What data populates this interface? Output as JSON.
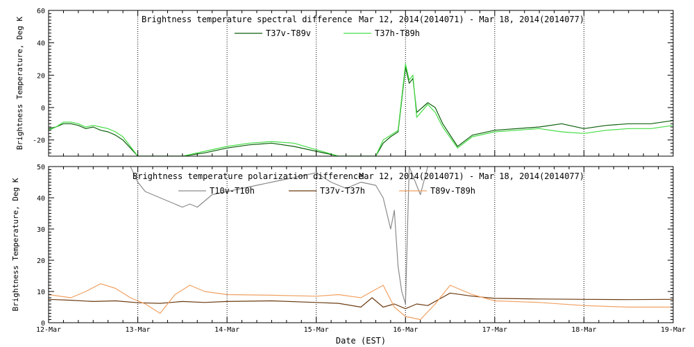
{
  "chart_data": [
    {
      "type": "line",
      "title": "Brightness temperature spectral difference",
      "subtitle": "Mar 12, 2014(2014071) - Mar 18, 2014(2014077)",
      "ylabel": "Brightness Temperature, Deg K",
      "xlabel": "",
      "x_ticks": [
        "12-Mar",
        "13-Mar",
        "14-Mar",
        "15-Mar",
        "16-Mar",
        "17-Mar",
        "18-Mar",
        "19-Mar"
      ],
      "y_ticks": [
        "-20",
        "0",
        "20",
        "40",
        "60"
      ],
      "xlim": [
        "2014-03-12",
        "2014-03-19"
      ],
      "ylim": [
        -30,
        60
      ],
      "grid": true,
      "legend_position": "top-center",
      "series": [
        {
          "name": "T37v-T89v",
          "color": "#0b5e0b",
          "points": [
            [
              "2014-03-12 00:00",
              -13
            ],
            [
              "2014-03-12 02:00",
              -12
            ],
            [
              "2014-03-12 04:00",
              -10
            ],
            [
              "2014-03-12 06:00",
              -10
            ],
            [
              "2014-03-12 08:00",
              -11
            ],
            [
              "2014-03-12 10:00",
              -13
            ],
            [
              "2014-03-12 12:00",
              -12
            ],
            [
              "2014-03-12 14:00",
              -14
            ],
            [
              "2014-03-12 16:00",
              -15
            ],
            [
              "2014-03-12 18:00",
              -17
            ],
            [
              "2014-03-12 20:00",
              -20
            ],
            [
              "2014-03-12 22:00",
              -25
            ],
            [
              "2014-03-13 00:00",
              -30
            ],
            [
              "2014-03-13 12:00",
              -30
            ],
            [
              "2014-03-13 18:00",
              -28
            ],
            [
              "2014-03-14 00:00",
              -25
            ],
            [
              "2014-03-14 06:00",
              -23
            ],
            [
              "2014-03-14 12:00",
              -22
            ],
            [
              "2014-03-14 18:00",
              -24
            ],
            [
              "2014-03-15 00:00",
              -27
            ],
            [
              "2014-03-15 06:00",
              -30
            ],
            [
              "2014-03-15 16:00",
              -30
            ],
            [
              "2014-03-15 18:00",
              -22
            ],
            [
              "2014-03-15 20:00",
              -18
            ],
            [
              "2014-03-15 22:00",
              -15
            ],
            [
              "2014-03-16 00:00",
              25
            ],
            [
              "2014-03-16 01:00",
              15
            ],
            [
              "2014-03-16 02:00",
              18
            ],
            [
              "2014-03-16 03:00",
              -3
            ],
            [
              "2014-03-16 06:00",
              3
            ],
            [
              "2014-03-16 08:00",
              0
            ],
            [
              "2014-03-16 10:00",
              -10
            ],
            [
              "2014-03-16 14:00",
              -24
            ],
            [
              "2014-03-16 18:00",
              -17
            ],
            [
              "2014-03-17 00:00",
              -14
            ],
            [
              "2014-03-17 12:00",
              -12
            ],
            [
              "2014-03-17 18:00",
              -10
            ],
            [
              "2014-03-18 00:00",
              -13
            ],
            [
              "2014-03-18 06:00",
              -11
            ],
            [
              "2014-03-18 12:00",
              -10
            ],
            [
              "2014-03-18 18:00",
              -10
            ],
            [
              "2014-03-19 00:00",
              -8
            ]
          ]
        },
        {
          "name": "T37h-T89h",
          "color": "#44dd44",
          "points": [
            [
              "2014-03-12 00:00",
              -14
            ],
            [
              "2014-03-12 02:00",
              -12
            ],
            [
              "2014-03-12 04:00",
              -9
            ],
            [
              "2014-03-12 06:00",
              -9
            ],
            [
              "2014-03-12 08:00",
              -10
            ],
            [
              "2014-03-12 10:00",
              -12
            ],
            [
              "2014-03-12 12:00",
              -11
            ],
            [
              "2014-03-12 14:00",
              -12
            ],
            [
              "2014-03-12 16:00",
              -13
            ],
            [
              "2014-03-12 18:00",
              -15
            ],
            [
              "2014-03-12 20:00",
              -18
            ],
            [
              "2014-03-12 22:00",
              -24
            ],
            [
              "2014-03-13 00:00",
              -30
            ],
            [
              "2014-03-13 12:00",
              -30
            ],
            [
              "2014-03-13 18:00",
              -27
            ],
            [
              "2014-03-14 00:00",
              -24
            ],
            [
              "2014-03-14 06:00",
              -22
            ],
            [
              "2014-03-14 12:00",
              -21
            ],
            [
              "2014-03-14 18:00",
              -22
            ],
            [
              "2014-03-15 00:00",
              -26
            ],
            [
              "2014-03-15 06:00",
              -30
            ],
            [
              "2014-03-15 16:00",
              -30
            ],
            [
              "2014-03-15 18:00",
              -20
            ],
            [
              "2014-03-15 20:00",
              -17
            ],
            [
              "2014-03-15 22:00",
              -14
            ],
            [
              "2014-03-16 00:00",
              27
            ],
            [
              "2014-03-16 01:00",
              17
            ],
            [
              "2014-03-16 02:00",
              20
            ],
            [
              "2014-03-16 03:00",
              -6
            ],
            [
              "2014-03-16 06:00",
              2
            ],
            [
              "2014-03-16 08:00",
              -3
            ],
            [
              "2014-03-16 10:00",
              -12
            ],
            [
              "2014-03-16 14:00",
              -25
            ],
            [
              "2014-03-16 18:00",
              -18
            ],
            [
              "2014-03-17 00:00",
              -15
            ],
            [
              "2014-03-17 12:00",
              -13
            ],
            [
              "2014-03-17 18:00",
              -15
            ],
            [
              "2014-03-18 00:00",
              -16
            ],
            [
              "2014-03-18 06:00",
              -14
            ],
            [
              "2014-03-18 12:00",
              -13
            ],
            [
              "2014-03-18 18:00",
              -13
            ],
            [
              "2014-03-19 00:00",
              -11
            ]
          ]
        }
      ]
    },
    {
      "type": "line",
      "title": "Brightness temperature polarization difference",
      "subtitle": "Mar 12, 2014(2014071) - Mar 18, 2014(2014077)",
      "ylabel": "Brightness Temperature, Deg K",
      "xlabel": "Date (EST)",
      "x_ticks": [
        "12-Mar",
        "13-Mar",
        "14-Mar",
        "15-Mar",
        "16-Mar",
        "17-Mar",
        "18-Mar",
        "19-Mar"
      ],
      "y_ticks": [
        "0",
        "10",
        "20",
        "30",
        "40",
        "50"
      ],
      "xlim": [
        "2014-03-12",
        "2014-03-19"
      ],
      "ylim": [
        0,
        50
      ],
      "grid": true,
      "legend_position": "top-center",
      "series": [
        {
          "name": "T10v-T10h",
          "color": "#8a8a8a",
          "points": [
            [
              "2014-03-12 22:00",
              50
            ],
            [
              "2014-03-13 00:00",
              45
            ],
            [
              "2014-03-13 02:00",
              42
            ],
            [
              "2014-03-13 04:00",
              41
            ],
            [
              "2014-03-13 06:00",
              40
            ],
            [
              "2014-03-13 08:00",
              39
            ],
            [
              "2014-03-13 10:00",
              38
            ],
            [
              "2014-03-13 12:00",
              37
            ],
            [
              "2014-03-13 14:00",
              38
            ],
            [
              "2014-03-13 16:00",
              37
            ],
            [
              "2014-03-13 18:00",
              39
            ],
            [
              "2014-03-13 20:00",
              41
            ],
            [
              "2014-03-14 00:00",
              42
            ],
            [
              "2014-03-14 04:00",
              43
            ],
            [
              "2014-03-14 08:00",
              44
            ],
            [
              "2014-03-14 12:00",
              45
            ],
            [
              "2014-03-14 16:00",
              46
            ],
            [
              "2014-03-14 20:00",
              47
            ],
            [
              "2014-03-15 00:00",
              48
            ],
            [
              "2014-03-15 04:00",
              45
            ],
            [
              "2014-03-15 08:00",
              43
            ],
            [
              "2014-03-15 12:00",
              45
            ],
            [
              "2014-03-15 16:00",
              44
            ],
            [
              "2014-03-15 18:00",
              40
            ],
            [
              "2014-03-15 20:00",
              30
            ],
            [
              "2014-03-15 21:00",
              36
            ],
            [
              "2014-03-15 22:00",
              18
            ],
            [
              "2014-03-15 23:00",
              10
            ],
            [
              "2014-03-16 00:00",
              6
            ],
            [
              "2014-03-16 01:00",
              50
            ],
            [
              "2014-03-16 04:00",
              41
            ],
            [
              "2014-03-16 06:00",
              50
            ]
          ]
        },
        {
          "name": "T37v-T37h",
          "color": "#6b3a10",
          "points": [
            [
              "2014-03-12 00:00",
              7.5
            ],
            [
              "2014-03-12 06:00",
              7.2
            ],
            [
              "2014-03-12 12:00",
              6.8
            ],
            [
              "2014-03-12 18:00",
              7.0
            ],
            [
              "2014-03-13 00:00",
              6.4
            ],
            [
              "2014-03-13 06:00",
              6.2
            ],
            [
              "2014-03-13 12:00",
              6.8
            ],
            [
              "2014-03-13 18:00",
              6.5
            ],
            [
              "2014-03-14 00:00",
              6.8
            ],
            [
              "2014-03-14 12:00",
              7.0
            ],
            [
              "2014-03-15 00:00",
              6.5
            ],
            [
              "2014-03-15 06:00",
              6.2
            ],
            [
              "2014-03-15 12:00",
              5.0
            ],
            [
              "2014-03-15 15:00",
              8.0
            ],
            [
              "2014-03-15 18:00",
              5.0
            ],
            [
              "2014-03-15 21:00",
              6.0
            ],
            [
              "2014-03-16 00:00",
              4.5
            ],
            [
              "2014-03-16 03:00",
              6.0
            ],
            [
              "2014-03-16 06:00",
              5.5
            ],
            [
              "2014-03-16 12:00",
              9.5
            ],
            [
              "2014-03-16 18:00",
              8.5
            ],
            [
              "2014-03-17 00:00",
              7.8
            ],
            [
              "2014-03-17 12:00",
              7.6
            ],
            [
              "2014-03-18 00:00",
              7.5
            ],
            [
              "2014-03-18 12:00",
              7.4
            ],
            [
              "2014-03-19 00:00",
              7.5
            ]
          ]
        },
        {
          "name": "T89v-T89h",
          "color": "#f0a060",
          "points": [
            [
              "2014-03-12 00:00",
              9.0
            ],
            [
              "2014-03-12 06:00",
              8.0
            ],
            [
              "2014-03-12 10:00",
              10.0
            ],
            [
              "2014-03-12 14:00",
              12.5
            ],
            [
              "2014-03-12 18:00",
              11.0
            ],
            [
              "2014-03-12 22:00",
              8.0
            ],
            [
              "2014-03-13 02:00",
              6.0
            ],
            [
              "2014-03-13 06:00",
              3.0
            ],
            [
              "2014-03-13 10:00",
              9.0
            ],
            [
              "2014-03-13 14:00",
              12.0
            ],
            [
              "2014-03-13 18:00",
              10.0
            ],
            [
              "2014-03-14 00:00",
              9.0
            ],
            [
              "2014-03-14 12:00",
              8.8
            ],
            [
              "2014-03-15 00:00",
              8.5
            ],
            [
              "2014-03-15 06:00",
              9.0
            ],
            [
              "2014-03-15 12:00",
              8.0
            ],
            [
              "2014-03-15 18:00",
              12.0
            ],
            [
              "2014-03-15 21:00",
              5.0
            ],
            [
              "2014-03-16 00:00",
              2.0
            ],
            [
              "2014-03-16 04:00",
              1.0
            ],
            [
              "2014-03-16 08:00",
              6.0
            ],
            [
              "2014-03-16 12:00",
              12.0
            ],
            [
              "2014-03-16 18:00",
              9.0
            ],
            [
              "2014-03-17 00:00",
              7.0
            ],
            [
              "2014-03-17 12:00",
              6.5
            ],
            [
              "2014-03-18 00:00",
              5.5
            ],
            [
              "2014-03-18 12:00",
              5.0
            ],
            [
              "2014-03-19 00:00",
              5.0
            ]
          ]
        }
      ]
    }
  ]
}
